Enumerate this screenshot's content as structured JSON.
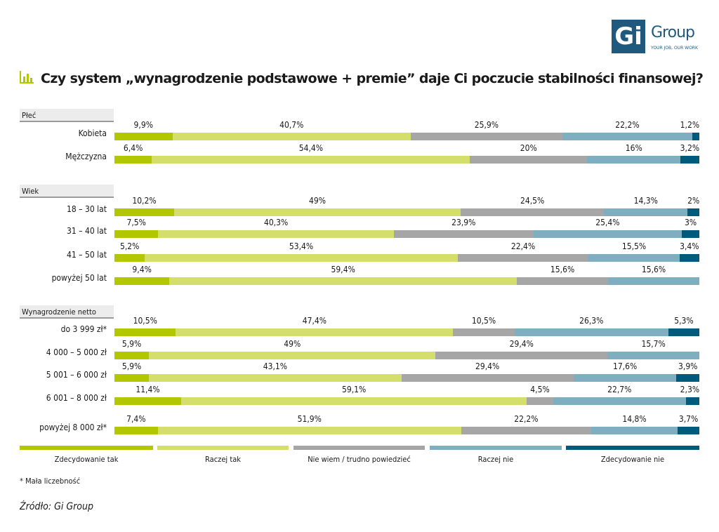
{
  "logo": {
    "mark": "Gi",
    "name": "Group",
    "tagline": "YOUR JOB, OUR WORK"
  },
  "chart_data": {
    "type": "bar",
    "orientation": "horizontal-stacked-100",
    "title": "Czy system „wynagrodzenie podstawowe + premie” daje Ci poczucie stabilności finansowej?",
    "legend": [
      "Zdecydowanie tak",
      "Raczej tak",
      "Nie wiem / trudno powiedzieć",
      "Raczej nie",
      "Zdecydowanie nie"
    ],
    "legend_position": "bottom",
    "colors": [
      "#b2c700",
      "#d3df6a",
      "#a6a6a6",
      "#7eaec0",
      "#005a7c"
    ],
    "groups": [
      {
        "name": "Płeć",
        "rows": [
          {
            "label": "Kobieta",
            "values": [
              9.9,
              40.7,
              25.9,
              22.2,
              1.2
            ],
            "texts": [
              "9,9%",
              "40,7%",
              "25,9%",
              "22,2%",
              "1,2%"
            ]
          },
          {
            "label": "Mężczyzna",
            "values": [
              6.4,
              54.4,
              20,
              16,
              3.2
            ],
            "texts": [
              "6,4%",
              "54,4%",
              "20%",
              "16%",
              "3,2%"
            ]
          }
        ]
      },
      {
        "name": "Wiek",
        "rows": [
          {
            "label": "18 – 30 lat",
            "values": [
              10.2,
              49,
              24.5,
              14.3,
              2
            ],
            "texts": [
              "10,2%",
              "49%",
              "24,5%",
              "14,3%",
              "2%"
            ]
          },
          {
            "label": "31 – 40 lat",
            "values": [
              7.5,
              40.3,
              23.9,
              25.4,
              3
            ],
            "texts": [
              "7,5%",
              "40,3%",
              "23,9%",
              "25,4%",
              "3%"
            ]
          },
          {
            "label": "41 – 50 lat",
            "values": [
              5.2,
              53.4,
              22.4,
              15.5,
              3.4
            ],
            "texts": [
              "5,2%",
              "53,4%",
              "22,4%",
              "15,5%",
              "3,4%"
            ]
          },
          {
            "label": "powyżej 50 lat",
            "values": [
              9.4,
              59.4,
              15.6,
              15.6,
              0
            ],
            "texts": [
              "9,4%",
              "59,4%",
              "15,6%",
              "15,6%",
              ""
            ]
          }
        ]
      },
      {
        "name": "Wynagrodzenie netto",
        "rows": [
          {
            "label": "do 3 999 zł*",
            "values": [
              10.5,
              47.4,
              10.5,
              26.3,
              5.3
            ],
            "texts": [
              "10,5%",
              "47,4%",
              "10,5%",
              "26,3%",
              "5,3%"
            ]
          },
          {
            "label": "4 000 – 5 000 zł",
            "values": [
              5.9,
              49,
              29.4,
              15.7,
              0
            ],
            "texts": [
              "5,9%",
              "49%",
              "29,4%",
              "15,7%",
              ""
            ]
          },
          {
            "label": "5 001 – 6 000 zł",
            "values": [
              5.9,
              43.1,
              29.4,
              17.6,
              3.9
            ],
            "texts": [
              "5,9%",
              "43,1%",
              "29,4%",
              "17,6%",
              "3,9%"
            ]
          },
          {
            "label": "6 001 – 8 000 zł",
            "values": [
              11.4,
              59.1,
              4.5,
              22.7,
              2.3
            ],
            "texts": [
              "11,4%",
              "59,1%",
              "4,5%",
              "22,7%",
              "2,3%"
            ]
          },
          {
            "label": "powyżej 8 000 zł*",
            "values": [
              7.4,
              51.9,
              22.2,
              14.8,
              3.7
            ],
            "texts": [
              "7,4%",
              "51,9%",
              "22,2%",
              "14,8%",
              "3,7%"
            ]
          }
        ]
      }
    ]
  },
  "note": "* Mała liczebność",
  "source": "Źródło: Gi Group"
}
